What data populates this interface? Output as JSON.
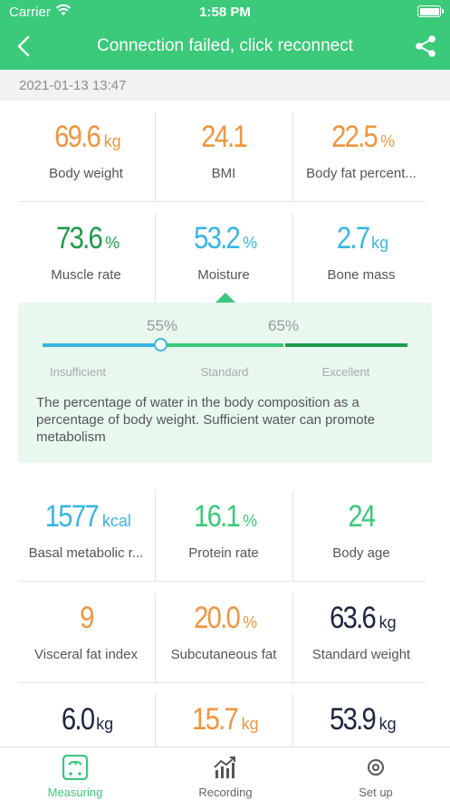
{
  "status_bar": {
    "carrier": "Carrier",
    "time": "1:58 PM"
  },
  "nav": {
    "title": "Connection failed, click reconnect"
  },
  "date": "2021-01-13 13:47",
  "metrics": [
    [
      {
        "value": "69.6",
        "unit": "kg",
        "label": "Body weight",
        "color": "#f0953d"
      },
      {
        "value": "24.1",
        "unit": "",
        "label": "BMI",
        "color": "#f0953d"
      },
      {
        "value": "22.5",
        "unit": "%",
        "label": "Body fat percent...",
        "color": "#f0953d"
      }
    ],
    [
      {
        "value": "73.6",
        "unit": "%",
        "label": "Muscle rate",
        "color": "#1e9a4b"
      },
      {
        "value": "53.2",
        "unit": "%",
        "label": "Moisture",
        "color": "#39b5e4"
      },
      {
        "value": "2.7",
        "unit": "kg",
        "label": "Bone mass",
        "color": "#39b5e4"
      }
    ],
    [
      {
        "value": "1577",
        "unit": "kcal",
        "label": "Basal metabolic r...",
        "color": "#39b5e4"
      },
      {
        "value": "16.1",
        "unit": "%",
        "label": "Protein rate",
        "color": "#3bc97a"
      },
      {
        "value": "24",
        "unit": "",
        "label": "Body age",
        "color": "#3bc97a"
      }
    ],
    [
      {
        "value": "9",
        "unit": "",
        "label": "Visceral fat index",
        "color": "#f0953d"
      },
      {
        "value": "20.0",
        "unit": "%",
        "label": "Subcutaneous fat",
        "color": "#f0953d"
      },
      {
        "value": "63.6",
        "unit": "kg",
        "label": "Standard weight",
        "color": "#1d2540"
      }
    ],
    [
      {
        "value": "6.0",
        "unit": "kg",
        "label": "",
        "color": "#1d2540"
      },
      {
        "value": "15.7",
        "unit": "kg",
        "label": "",
        "color": "#f0953d"
      },
      {
        "value": "53.9",
        "unit": "kg",
        "label": "",
        "color": "#1d2540"
      }
    ]
  ],
  "moisture_detail": {
    "thresholds": [
      "55%",
      "65%"
    ],
    "zones": [
      "Insufficient",
      "Standard",
      "Excellent"
    ],
    "zone_colors": [
      "#39b5e4",
      "#3bc97a",
      "#1e9a4b"
    ],
    "description": "The percentage of water in the body composition as a percentage of body weight. Sufficient water can promote metabolism"
  },
  "tabs": [
    {
      "label": "Measuring",
      "icon": "scale-icon",
      "active": true
    },
    {
      "label": "Recording",
      "icon": "chart-trend-icon",
      "active": false
    },
    {
      "label": "Set up",
      "icon": "settings-icon",
      "active": false
    }
  ]
}
